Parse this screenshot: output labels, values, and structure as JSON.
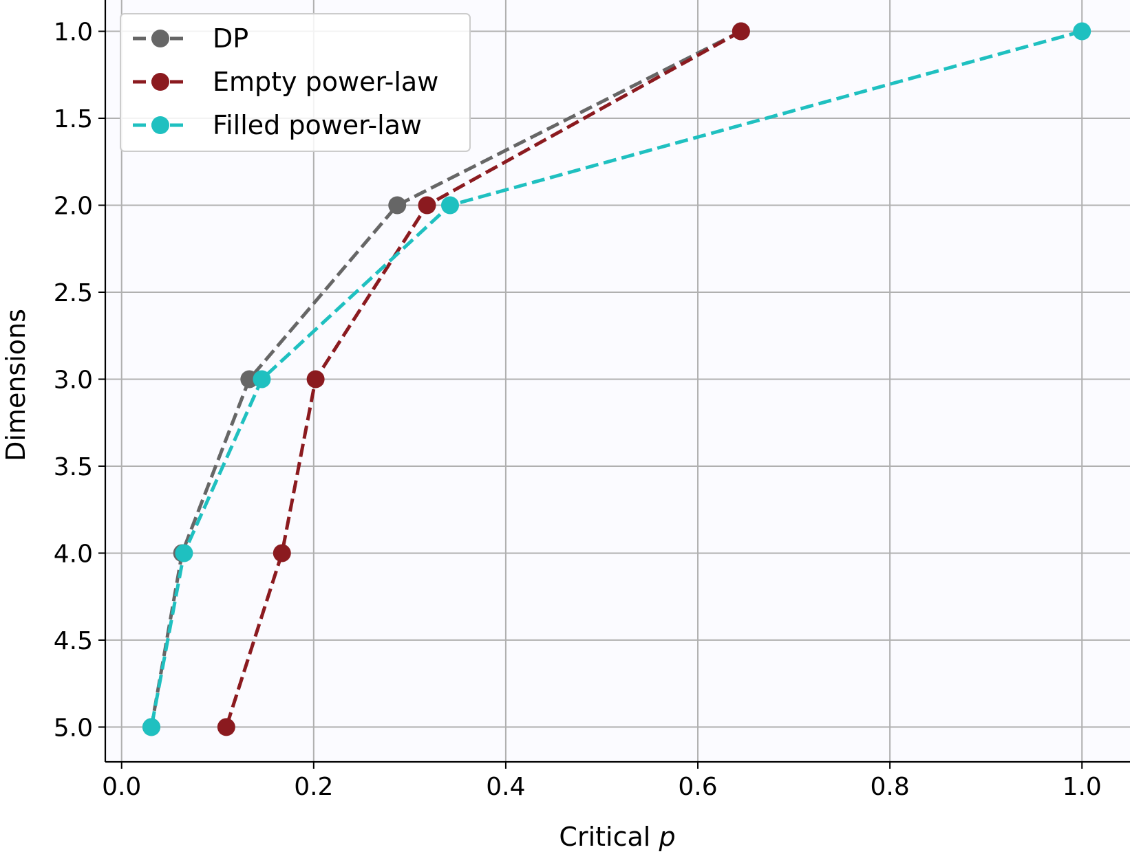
{
  "chart_data": {
    "type": "line",
    "xlabel": "Critical",
    "xlabel_var": "p",
    "ylabel": "Dimensions",
    "xlim": [
      -0.017,
      1.05
    ],
    "ylim": [
      5.2,
      0.82
    ],
    "y_inverted": true,
    "grid": true,
    "legend_position": "top-left",
    "xticks": [
      0.0,
      0.2,
      0.4,
      0.6,
      0.8,
      1.0
    ],
    "xtick_labels": [
      "0.0",
      "0.2",
      "0.4",
      "0.6",
      "0.8",
      "1.0"
    ],
    "yticks": [
      1.0,
      1.5,
      2.0,
      2.5,
      3.0,
      3.5,
      4.0,
      4.5,
      5.0
    ],
    "ytick_labels": [
      "1.0",
      "1.5",
      "2.0",
      "2.5",
      "3.0",
      "3.5",
      "4.0",
      "4.5",
      "5.0"
    ],
    "series": [
      {
        "name": "DP",
        "color": "#666666",
        "x": [
          0.645,
          0.287,
          0.133,
          0.063,
          0.031
        ],
        "y": [
          1,
          2,
          3,
          4,
          5
        ]
      },
      {
        "name": "Empty power-law",
        "color": "#8b1a1f",
        "x": [
          0.645,
          0.318,
          0.202,
          0.167,
          0.109
        ],
        "y": [
          1,
          2,
          3,
          4,
          5
        ]
      },
      {
        "name": "Filled power-law",
        "color": "#1fc0c0",
        "x": [
          1.0,
          0.342,
          0.146,
          0.065,
          0.031
        ],
        "y": [
          1,
          2,
          3,
          4,
          5
        ]
      }
    ]
  }
}
